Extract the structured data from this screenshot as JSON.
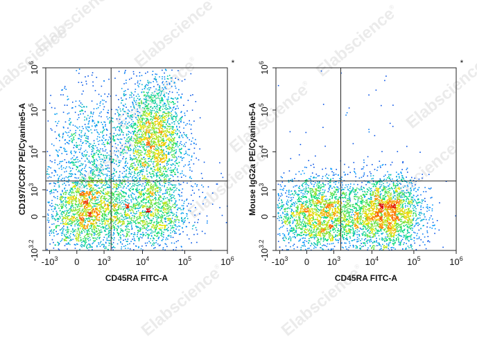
{
  "watermark": {
    "text": "Elabscience",
    "mark": "®"
  },
  "chart_data": [
    {
      "type": "scatter",
      "title": "",
      "xlabel": "CD45RA FITC-A",
      "ylabel": "CD197/CCR7 PE/Cyanine5-A",
      "corner_mark": "*",
      "x_scale": "biexponential",
      "y_scale": "biexponential",
      "x_ticks": [
        {
          "value": -1000,
          "base": "-10",
          "exp": "3"
        },
        {
          "value": 0,
          "base": "0",
          "exp": ""
        },
        {
          "value": 1000,
          "base": "10",
          "exp": "3"
        },
        {
          "value": 10000,
          "base": "10",
          "exp": "4"
        },
        {
          "value": 100000,
          "base": "10",
          "exp": "5"
        },
        {
          "value": 1000000,
          "base": "10",
          "exp": "6"
        }
      ],
      "y_ticks": [
        {
          "value": -1585,
          "base": "-10",
          "exp": "3.2"
        },
        {
          "value": 0,
          "base": "0",
          "exp": ""
        },
        {
          "value": 1000,
          "base": "10",
          "exp": "3"
        },
        {
          "value": 10000,
          "base": "10",
          "exp": "4"
        },
        {
          "value": 100000,
          "base": "10",
          "exp": "5"
        },
        {
          "value": 1000000,
          "base": "10",
          "exp": "6"
        }
      ],
      "quadrant_gate": {
        "x": 1600,
        "y": 1800
      },
      "populations": [
        {
          "name": "",
          "x": 200,
          "y": 50,
          "xsd": 0.55,
          "ysd": 0.5,
          "count": 1500
        },
        {
          "name": "",
          "x": 20000,
          "y": 50,
          "xsd": 0.35,
          "ysd": 0.45,
          "count": 700
        },
        {
          "name": "",
          "x": 20000,
          "y": 25000,
          "xsd": 0.35,
          "ysd": 0.7,
          "count": 1800
        },
        {
          "name": "",
          "x": 300,
          "y": 6000,
          "xsd": 0.6,
          "ysd": 0.9,
          "count": 900
        },
        {
          "name": "",
          "x": 3000,
          "y": 3000,
          "xsd": 0.9,
          "ysd": 1.0,
          "count": 700
        },
        {
          "name": "",
          "x": 3000,
          "y": 100,
          "xsd": 0.9,
          "ysd": 0.4,
          "count": 500
        }
      ]
    },
    {
      "type": "scatter",
      "title": "",
      "xlabel": "CD45RA FITC-A",
      "ylabel": "Mouse IgG2a PE/Cyanine5-A",
      "corner_mark": "*",
      "x_scale": "biexponential",
      "y_scale": "biexponential",
      "x_ticks": [
        {
          "value": -1000,
          "base": "-10",
          "exp": "3"
        },
        {
          "value": 0,
          "base": "0",
          "exp": ""
        },
        {
          "value": 1000,
          "base": "10",
          "exp": "3"
        },
        {
          "value": 10000,
          "base": "10",
          "exp": "4"
        },
        {
          "value": 100000,
          "base": "10",
          "exp": "5"
        },
        {
          "value": 1000000,
          "base": "10",
          "exp": "6"
        }
      ],
      "y_ticks": [
        {
          "value": -1585,
          "base": "-10",
          "exp": "3.2"
        },
        {
          "value": 0,
          "base": "0",
          "exp": ""
        },
        {
          "value": 1000,
          "base": "10",
          "exp": "3"
        },
        {
          "value": 10000,
          "base": "10",
          "exp": "4"
        },
        {
          "value": 100000,
          "base": "10",
          "exp": "5"
        },
        {
          "value": 1000000,
          "base": "10",
          "exp": "6"
        }
      ],
      "quadrant_gate": {
        "x": 1600,
        "y": 1800
      },
      "populations": [
        {
          "name": "",
          "x": 200,
          "y": 50,
          "xsd": 0.55,
          "ysd": 0.45,
          "count": 1700
        },
        {
          "name": "",
          "x": 25000,
          "y": 50,
          "xsd": 0.4,
          "ysd": 0.45,
          "count": 1700
        },
        {
          "name": "",
          "x": 3000,
          "y": 50,
          "xsd": 0.9,
          "ysd": 0.45,
          "count": 900
        },
        {
          "name": "",
          "x": 2000,
          "y": 30000,
          "xsd": 1.2,
          "ysd": 1.2,
          "count": 60
        }
      ]
    }
  ]
}
